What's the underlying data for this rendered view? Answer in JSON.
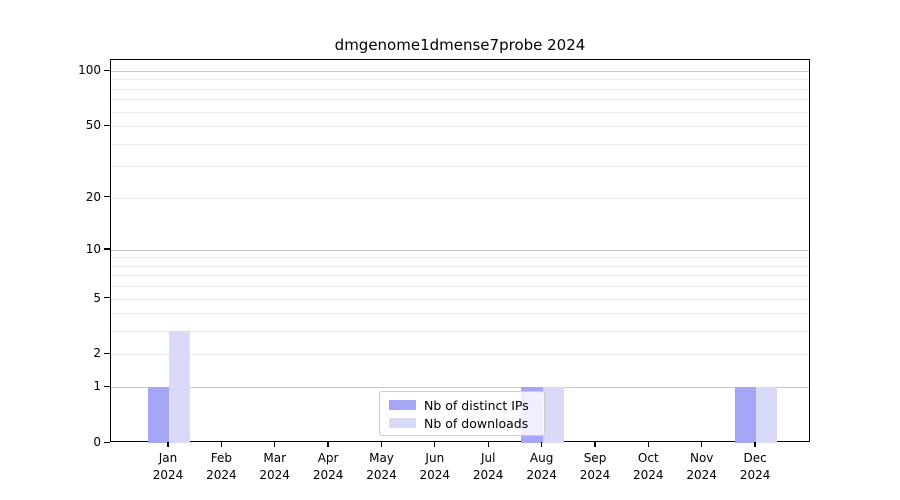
{
  "chart_data": {
    "type": "bar",
    "title": "dmgenome1dmense7probe 2024",
    "categories": [
      "Jan",
      "Feb",
      "Mar",
      "Apr",
      "May",
      "Jun",
      "Jul",
      "Aug",
      "Sep",
      "Oct",
      "Nov",
      "Dec"
    ],
    "category_year": "2024",
    "series": [
      {
        "name": "Nb of distinct IPs",
        "color": "#a6a6f7",
        "values": [
          1,
          0,
          0,
          0,
          0,
          0,
          0,
          1,
          0,
          0,
          0,
          1
        ]
      },
      {
        "name": "Nb of downloads",
        "color": "#d9d9f8",
        "values": [
          3,
          0,
          0,
          0,
          0,
          0,
          0,
          1,
          0,
          0,
          0,
          1
        ]
      }
    ],
    "yscale": "log1p",
    "ylim": [
      0,
      100
    ],
    "y_ticks": [
      0,
      1,
      2,
      5,
      10,
      20,
      50,
      100
    ],
    "y_major_gridlines": [
      1,
      10,
      100
    ],
    "y_minor_gridlines": [
      2,
      3,
      4,
      5,
      6,
      7,
      8,
      9,
      20,
      30,
      40,
      50,
      60,
      70,
      80,
      90
    ],
    "grid": "on",
    "legend_position": "lower center"
  }
}
